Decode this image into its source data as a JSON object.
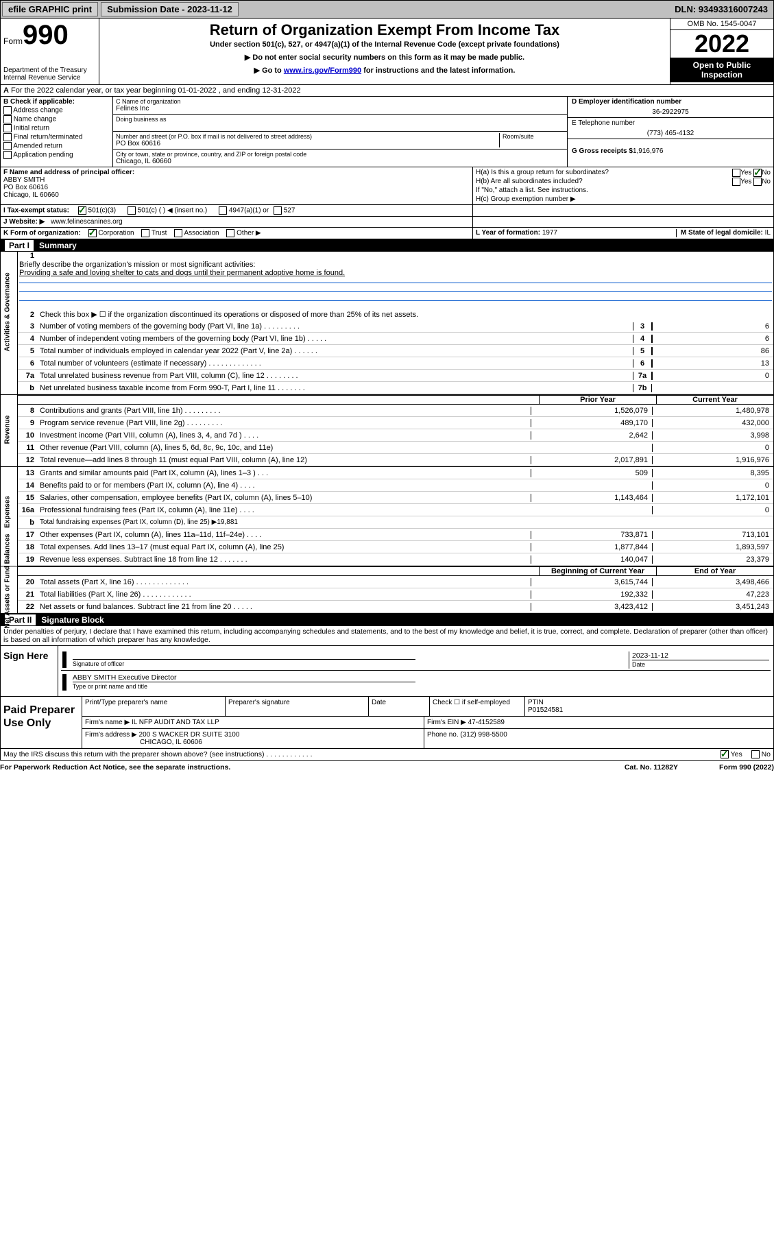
{
  "topbar": {
    "efile": "efile GRAPHIC print",
    "submission_label": "Submission Date - 2023-11-12",
    "dln": "DLN: 93493316007243"
  },
  "header": {
    "form_word": "Form",
    "form_number": "990",
    "dept": "Department of the Treasury\nInternal Revenue Service",
    "title": "Return of Organization Exempt From Income Tax",
    "sub": "Under section 501(c), 527, or 4947(a)(1) of the Internal Revenue Code (except private foundations)",
    "note1": "▶ Do not enter social security numbers on this form as it may be made public.",
    "note2_pre": "▶ Go to ",
    "note2_link": "www.irs.gov/Form990",
    "note2_post": " for instructions and the latest information.",
    "omb": "OMB No. 1545-0047",
    "year": "2022",
    "open": "Open to Public Inspection"
  },
  "row_a": "For the 2022 calendar year, or tax year beginning 01-01-2022   , and ending 12-31-2022",
  "col_b": {
    "hdr": "B Check if applicable:",
    "items": [
      "Address change",
      "Name change",
      "Initial return",
      "Final return/terminated",
      "Amended return",
      "Application pending"
    ]
  },
  "name_block": {
    "c_label": "C Name of organization",
    "c_name": "Felines Inc",
    "dba_label": "Doing business as",
    "addr_label": "Number and street (or P.O. box if mail is not delivered to street address)",
    "room_label": "Room/suite",
    "addr": "PO Box 60616",
    "city_label": "City or town, state or province, country, and ZIP or foreign postal code",
    "city": "Chicago, IL  60660"
  },
  "right_block": {
    "d_label": "D Employer identification number",
    "d_val": "36-2922975",
    "e_label": "E Telephone number",
    "e_val": "(773) 465-4132",
    "g_label": "G Gross receipts $",
    "g_val": "1,916,976"
  },
  "fh_block": {
    "f_label": "F Name and address of principal officer:",
    "f_name": "ABBY SMITH",
    "f_addr1": "PO Box 60616",
    "f_addr2": "Chicago, IL  60660",
    "ha": "H(a) Is this a group return for subordinates?",
    "ha_yes": "Yes",
    "ha_no": "No",
    "hb": "H(b) Are all subordinates included?",
    "hb_note": "If \"No,\" attach a list. See instructions.",
    "hc": "H(c) Group exemption number ▶"
  },
  "row_i": {
    "label": "I   Tax-exempt status:",
    "o1": "501(c)(3)",
    "o2": "501(c) (   ) ◀ (insert no.)",
    "o3": "4947(a)(1) or",
    "o4": "527"
  },
  "row_j": {
    "label": "J   Website: ▶",
    "val": "www.felinescanines.org"
  },
  "row_k": {
    "label": "K Form of organization:",
    "o1": "Corporation",
    "o2": "Trust",
    "o3": "Association",
    "o4": "Other ▶"
  },
  "row_l": {
    "label": "L Year of formation:",
    "val": "1977"
  },
  "row_m": {
    "label": "M State of legal domicile:",
    "val": "IL"
  },
  "part1": {
    "hdr": "Summary",
    "partno": "Part I"
  },
  "mission": "Providing a safe and loving shelter to cats and dogs until their permanent adoptive home is found.",
  "lines_gov": [
    {
      "n": "1",
      "d": "Briefly describe the organization's mission or most significant activities:",
      "type": "mission"
    },
    {
      "n": "2",
      "d": "Check this box ▶ ☐ if the organization discontinued its operations or disposed of more than 25% of its net assets.",
      "type": "check"
    },
    {
      "n": "3",
      "d": "Number of voting members of the governing body (Part VI, line 1a)  .   .   .   .   .   .   .   .   .",
      "box": "3",
      "v": "6"
    },
    {
      "n": "4",
      "d": "Number of independent voting members of the governing body (Part VI, line 1b)  .   .   .   .   .",
      "box": "4",
      "v": "6"
    },
    {
      "n": "5",
      "d": "Total number of individuals employed in calendar year 2022 (Part V, line 2a)  .   .   .   .   .   .",
      "box": "5",
      "v": "86"
    },
    {
      "n": "6",
      "d": "Total number of volunteers (estimate if necessary)  .   .   .   .   .   .   .   .   .   .   .   .   .",
      "box": "6",
      "v": "13"
    },
    {
      "n": "7a",
      "d": "Total unrelated business revenue from Part VIII, column (C), line 12  .   .   .   .   .   .   .   .",
      "box": "7a",
      "v": "0"
    },
    {
      "n": "b",
      "d": "Net unrelated business taxable income from Form 990-T, Part I, line 11  .   .   .   .   .   .   .",
      "box": "7b",
      "v": ""
    }
  ],
  "tbl_hdr": {
    "py": "Prior Year",
    "cy": "Current Year"
  },
  "lines_rev": [
    {
      "n": "8",
      "d": "Contributions and grants (Part VIII, line 1h)  .   .   .   .   .   .   .   .   .",
      "py": "1,526,079",
      "cy": "1,480,978"
    },
    {
      "n": "9",
      "d": "Program service revenue (Part VIII, line 2g)  .   .   .   .   .   .   .   .   .",
      "py": "489,170",
      "cy": "432,000"
    },
    {
      "n": "10",
      "d": "Investment income (Part VIII, column (A), lines 3, 4, and 7d )  .   .   .   .",
      "py": "2,642",
      "cy": "3,998"
    },
    {
      "n": "11",
      "d": "Other revenue (Part VIII, column (A), lines 5, 6d, 8c, 9c, 10c, and 11e)",
      "py": "",
      "cy": "0"
    },
    {
      "n": "12",
      "d": "Total revenue—add lines 8 through 11 (must equal Part VIII, column (A), line 12)",
      "py": "2,017,891",
      "cy": "1,916,976"
    }
  ],
  "lines_exp": [
    {
      "n": "13",
      "d": "Grants and similar amounts paid (Part IX, column (A), lines 1–3 )  .   .   .",
      "py": "509",
      "cy": "8,395"
    },
    {
      "n": "14",
      "d": "Benefits paid to or for members (Part IX, column (A), line 4)  .   .   .   .",
      "py": "",
      "cy": "0"
    },
    {
      "n": "15",
      "d": "Salaries, other compensation, employee benefits (Part IX, column (A), lines 5–10)",
      "py": "1,143,464",
      "cy": "1,172,101"
    },
    {
      "n": "16a",
      "d": "Professional fundraising fees (Part IX, column (A), line 11e)  .   .   .   .",
      "py": "",
      "cy": "0"
    },
    {
      "n": "b",
      "d": "Total fundraising expenses (Part IX, column (D), line 25) ▶19,881",
      "type": "sub",
      "shade": true
    },
    {
      "n": "17",
      "d": "Other expenses (Part IX, column (A), lines 11a–11d, 11f–24e)  .   .   .   .",
      "py": "733,871",
      "cy": "713,101"
    },
    {
      "n": "18",
      "d": "Total expenses. Add lines 13–17 (must equal Part IX, column (A), line 25)",
      "py": "1,877,844",
      "cy": "1,893,597"
    },
    {
      "n": "19",
      "d": "Revenue less expenses. Subtract line 18 from line 12  .   .   .   .   .   .   .",
      "py": "140,047",
      "cy": "23,379"
    }
  ],
  "tbl_hdr2": {
    "py": "Beginning of Current Year",
    "cy": "End of Year"
  },
  "lines_net": [
    {
      "n": "20",
      "d": "Total assets (Part X, line 16)  .   .   .   .   .   .   .   .   .   .   .   .   .",
      "py": "3,615,744",
      "cy": "3,498,466"
    },
    {
      "n": "21",
      "d": "Total liabilities (Part X, line 26)  .   .   .   .   .   .   .   .   .   .   .   .",
      "py": "192,332",
      "cy": "47,223"
    },
    {
      "n": "22",
      "d": "Net assets or fund balances. Subtract line 21 from line 20  .   .   .   .   .",
      "py": "3,423,412",
      "cy": "3,451,243"
    }
  ],
  "vert_labels": {
    "gov": "Activities & Governance",
    "rev": "Revenue",
    "exp": "Expenses",
    "net": "Net Assets or Fund Balances"
  },
  "part2": {
    "partno": "Part II",
    "hdr": "Signature Block"
  },
  "declare": "Under penalties of perjury, I declare that I have examined this return, including accompanying schedules and statements, and to the best of my knowledge and belief, it is true, correct, and complete. Declaration of preparer (other than officer) is based on all information of which preparer has any knowledge.",
  "sign": {
    "lbl": "Sign Here",
    "sig_label": "Signature of officer",
    "date_label": "Date",
    "date": "2023-11-12",
    "name": "ABBY SMITH Executive Director",
    "name_label": "Type or print name and title"
  },
  "prep": {
    "lbl": "Paid Preparer Use Only",
    "h1": "Print/Type preparer's name",
    "h2": "Preparer's signature",
    "h3": "Date",
    "h4": "Check ☐ if self-employed",
    "h5": "PTIN",
    "ptin": "P01524581",
    "firm_lbl": "Firm's name    ▶",
    "firm": "IL NFP AUDIT AND TAX LLP",
    "ein_lbl": "Firm's EIN ▶",
    "ein": "47-4152589",
    "addr_lbl": "Firm's address ▶",
    "addr": "200 S WACKER DR SUITE 3100",
    "addr2": "CHICAGO, IL  60606",
    "phone_lbl": "Phone no.",
    "phone": "(312) 998-5500"
  },
  "footer": {
    "discuss": "May the IRS discuss this return with the preparer shown above? (see instructions)  .   .   .   .   .   .   .   .   .   .   .   .",
    "yes": "Yes",
    "no": "No",
    "pra": "For Paperwork Reduction Act Notice, see the separate instructions.",
    "cat": "Cat. No. 11282Y",
    "form": "Form 990 (2022)"
  }
}
